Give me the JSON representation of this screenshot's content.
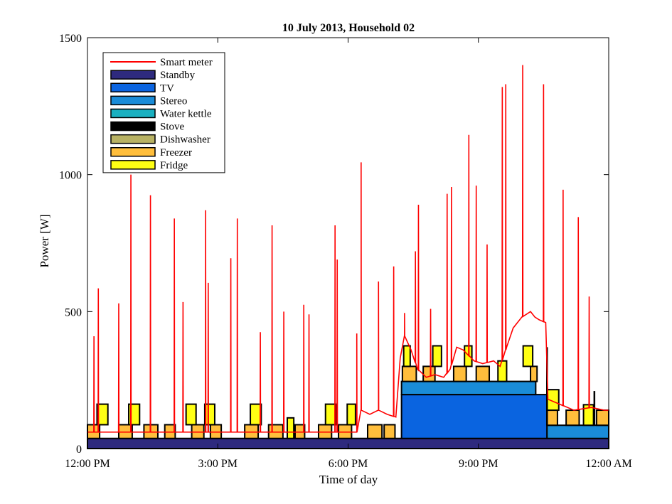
{
  "chart_data": {
    "type": "area",
    "title": "10 July 2013, Household 02",
    "xlabel": "Time of day",
    "ylabel": "Power [W]",
    "xlim": [
      12,
      24
    ],
    "ylim": [
      0,
      1500
    ],
    "x_tick_values": [
      12,
      15,
      18,
      21,
      24
    ],
    "x_tick_labels": [
      "12:00 PM",
      "3:00 PM",
      "6:00 PM",
      "9:00 PM",
      "12:00 AM"
    ],
    "y_tick_values": [
      0,
      500,
      1000,
      1500
    ],
    "y_tick_labels": [
      "0",
      "500",
      "1000",
      "1500"
    ],
    "grid": false,
    "legend_position": "top-left",
    "legend": [
      {
        "label": "Smart meter",
        "kind": "line",
        "color": "#ff0000"
      },
      {
        "label": "Standby",
        "kind": "patch",
        "color": "#2e2a7e"
      },
      {
        "label": "TV",
        "kind": "patch",
        "color": "#0a64e0"
      },
      {
        "label": "Stereo",
        "kind": "patch",
        "color": "#1a8cd8"
      },
      {
        "label": "Water kettle",
        "kind": "patch",
        "color": "#1ab0c0"
      },
      {
        "label": "Stove",
        "kind": "patch",
        "color": "#000000"
      },
      {
        "label": "Dishwasher",
        "kind": "patch",
        "color": "#b8b264"
      },
      {
        "label": "Freezer",
        "kind": "patch",
        "color": "#ffbe3c"
      },
      {
        "label": "Fridge",
        "kind": "patch",
        "color": "#ffff14"
      }
    ],
    "components": {
      "standby_level": 37,
      "tv": {
        "start": 19.23,
        "end": 22.58,
        "value": 160
      },
      "stereo_evening": {
        "start": 19.23,
        "end": 22.32,
        "value": 48
      },
      "stereo_late": {
        "start": 22.58,
        "end": 24.0,
        "value": 48
      },
      "freezer_value": 50,
      "freezer_late_value": 55,
      "freezer_evening_value": 55,
      "freezer_cycles": [
        [
          12.0,
          12.28
        ],
        [
          12.72,
          13.03
        ],
        [
          13.3,
          13.62
        ],
        [
          13.78,
          14.02
        ],
        [
          14.4,
          14.68
        ],
        [
          14.83,
          15.08
        ],
        [
          15.62,
          15.93
        ],
        [
          16.17,
          16.5
        ],
        [
          16.78,
          17.0
        ],
        [
          17.32,
          17.62
        ],
        [
          17.78,
          18.08
        ],
        [
          18.45,
          18.78
        ],
        [
          18.83,
          19.08
        ]
      ],
      "freezer_evening_cycles": [
        [
          19.25,
          19.57
        ],
        [
          19.73,
          20.0
        ],
        [
          20.43,
          20.72
        ],
        [
          20.95,
          21.25
        ],
        [
          22.2,
          22.35
        ]
      ],
      "freezer_late_cycles": [
        [
          22.58,
          22.82
        ],
        [
          23.02,
          23.32
        ],
        [
          23.72,
          24.0
        ]
      ],
      "fridge_value": 75,
      "fridge_evening_value": 75,
      "fridge_late_value": 75,
      "fridge_cycles": [
        [
          12.22,
          12.47
        ],
        [
          12.95,
          13.2
        ],
        [
          14.27,
          14.5
        ],
        [
          14.7,
          14.93
        ],
        [
          15.75,
          16.0
        ],
        [
          16.6,
          16.75
        ],
        [
          17.48,
          17.72
        ],
        [
          17.98,
          18.17
        ]
      ],
      "fridge_evening_cycles": [
        [
          19.28,
          19.43
        ],
        [
          19.95,
          20.15
        ],
        [
          20.68,
          20.85
        ],
        [
          21.45,
          21.65
        ],
        [
          22.03,
          22.25
        ]
      ],
      "fridge_late_cycles": [
        [
          22.58,
          22.85
        ],
        [
          23.42,
          23.65
        ]
      ],
      "stove_spikes": [
        [
          22.58,
          370
        ],
        [
          23.67,
          210
        ]
      ]
    },
    "smart_meter": {
      "base_points": [
        [
          12.0,
          60
        ],
        [
          12.1,
          60
        ],
        [
          18.2,
          60
        ],
        [
          18.3,
          140
        ],
        [
          18.5,
          125
        ],
        [
          18.7,
          140
        ],
        [
          18.9,
          125
        ],
        [
          19.1,
          115
        ],
        [
          19.2,
          330
        ],
        [
          19.3,
          410
        ],
        [
          19.45,
          360
        ],
        [
          19.6,
          290
        ],
        [
          19.8,
          260
        ],
        [
          20.0,
          270
        ],
        [
          20.2,
          260
        ],
        [
          20.35,
          290
        ],
        [
          20.5,
          370
        ],
        [
          20.65,
          360
        ],
        [
          20.9,
          320
        ],
        [
          21.1,
          310
        ],
        [
          21.35,
          320
        ],
        [
          21.5,
          300
        ],
        [
          21.65,
          370
        ],
        [
          21.8,
          440
        ],
        [
          22.0,
          480
        ],
        [
          22.2,
          500
        ],
        [
          22.3,
          480
        ],
        [
          22.4,
          470
        ],
        [
          22.55,
          460
        ],
        [
          22.6,
          180
        ],
        [
          22.9,
          160
        ],
        [
          23.2,
          140
        ],
        [
          23.6,
          150
        ],
        [
          23.9,
          140
        ],
        [
          24.0,
          140
        ]
      ],
      "spikes": [
        [
          12.15,
          410
        ],
        [
          12.25,
          585
        ],
        [
          12.72,
          530
        ],
        [
          13.0,
          1000
        ],
        [
          13.45,
          925
        ],
        [
          14.0,
          840
        ],
        [
          14.2,
          535
        ],
        [
          14.72,
          870
        ],
        [
          14.78,
          605
        ],
        [
          15.3,
          695
        ],
        [
          15.45,
          840
        ],
        [
          15.98,
          425
        ],
        [
          16.25,
          815
        ],
        [
          16.52,
          500
        ],
        [
          16.98,
          525
        ],
        [
          17.1,
          490
        ],
        [
          17.7,
          815
        ],
        [
          17.75,
          690
        ],
        [
          18.2,
          420
        ],
        [
          18.3,
          1045
        ],
        [
          18.7,
          610
        ],
        [
          19.05,
          665
        ],
        [
          19.3,
          495
        ],
        [
          19.55,
          720
        ],
        [
          19.62,
          890
        ],
        [
          19.9,
          510
        ],
        [
          20.28,
          930
        ],
        [
          20.38,
          955
        ],
        [
          20.78,
          1145
        ],
        [
          20.95,
          960
        ],
        [
          21.2,
          745
        ],
        [
          21.55,
          1320
        ],
        [
          21.63,
          1330
        ],
        [
          22.02,
          1400
        ],
        [
          22.5,
          1330
        ],
        [
          22.95,
          945
        ],
        [
          23.3,
          845
        ],
        [
          23.55,
          555
        ]
      ]
    }
  }
}
